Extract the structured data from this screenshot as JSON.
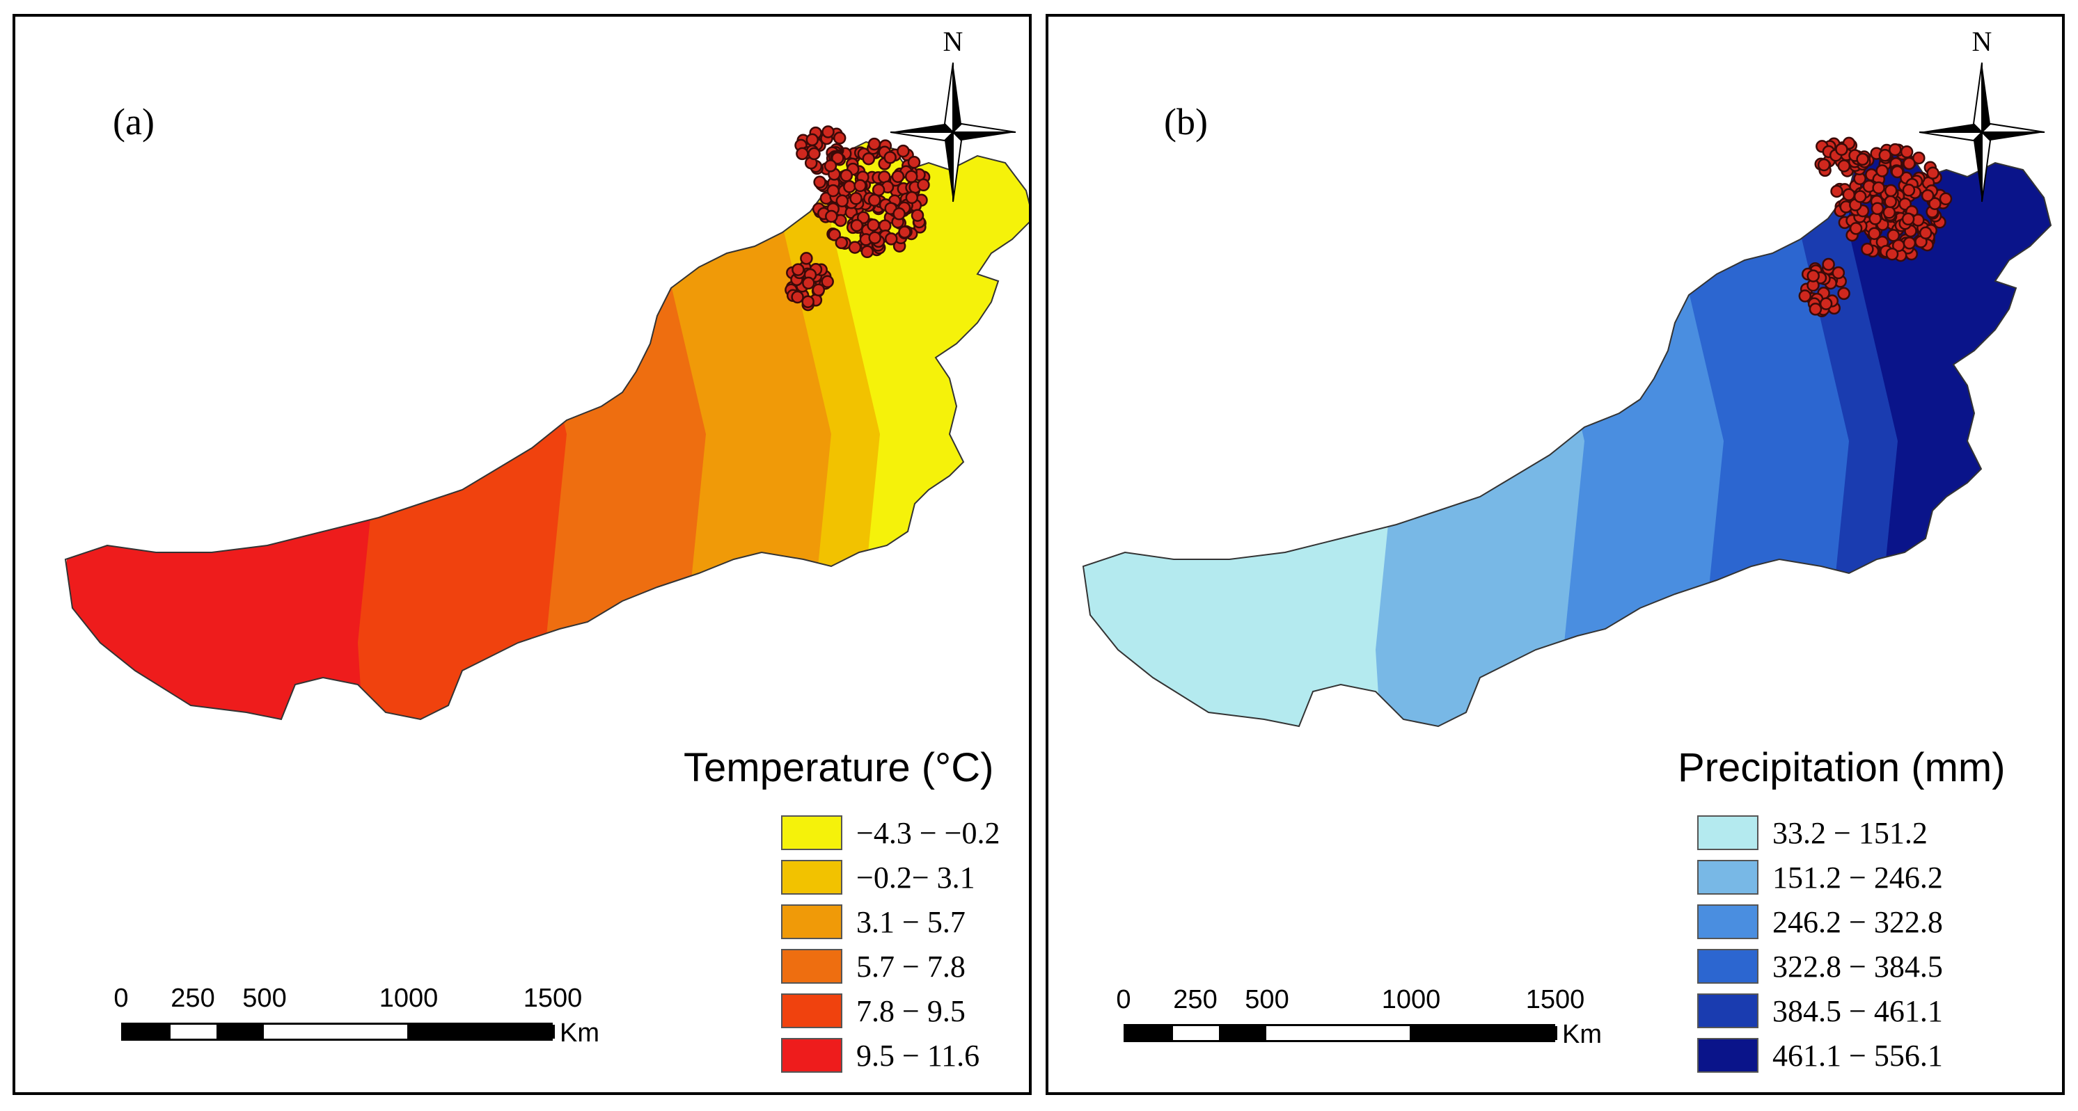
{
  "panels": {
    "a": {
      "label": "(a)",
      "legend_title": "Temperature (°C)",
      "classes": [
        {
          "label": "−4.3 − −0.2",
          "color": "#f5f20a"
        },
        {
          "label": "−0.2− 3.1",
          "color": "#f2c200"
        },
        {
          "label": "3.1 − 5.7",
          "color": "#f09a08"
        },
        {
          "label": "5.7 − 7.8",
          "color": "#ee6e10"
        },
        {
          "label": "7.8 − 9.5",
          "color": "#f0420e"
        },
        {
          "label": "9.5 − 11.6",
          "color": "#ee1c1c"
        }
      ]
    },
    "b": {
      "label": "(b)",
      "legend_title": "Precipitation (mm)",
      "classes": [
        {
          "label": "33.2  − 151.2",
          "color": "#b4eaef"
        },
        {
          "label": "151.2 − 246.2",
          "color": "#78b8e6"
        },
        {
          "label": "246.2 − 322.8",
          "color": "#4a8ee0"
        },
        {
          "label": "322.8 − 384.5",
          "color": "#2c66d0"
        },
        {
          "label": "384.5 − 461.1",
          "color": "#1a3cb0"
        },
        {
          "label": "461.1 − 556.1",
          "color": "#0a148a"
        }
      ]
    }
  },
  "north_arrow": {
    "label": "N"
  },
  "scale_bar": {
    "ticks": [
      "0",
      "250",
      "500",
      "1000",
      "1500"
    ],
    "unit": "Km"
  },
  "sample_points": {
    "fill": "#d0281e",
    "stroke": "#3a0a08"
  }
}
